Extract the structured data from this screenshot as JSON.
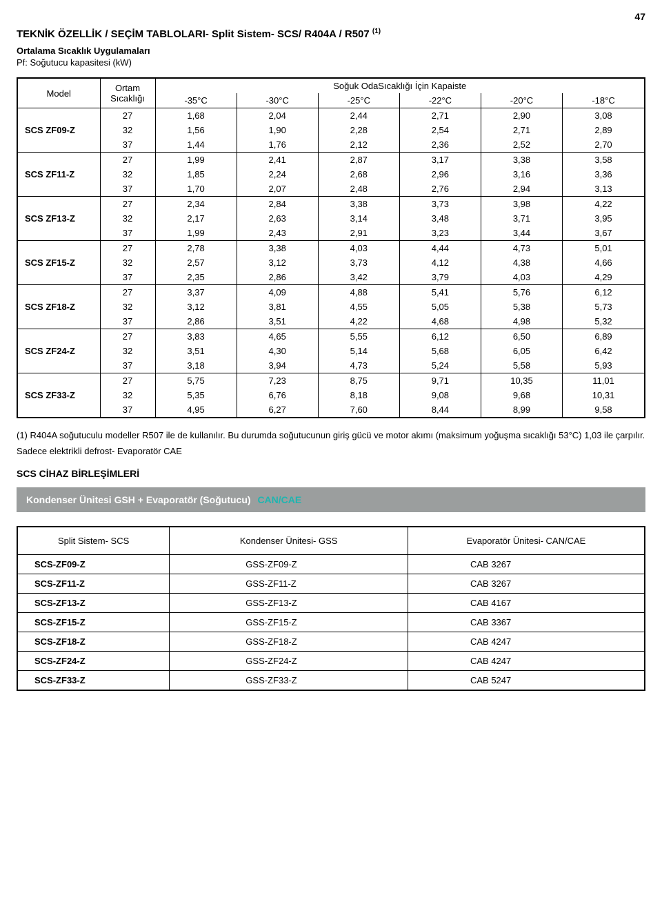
{
  "page_number": "47",
  "title": "TEKNİK ÖZELLİK / SEÇİM TABLOLARI- Split Sistem- SCS/ R404A / R507",
  "title_sup": "(1)",
  "subtitle": "Ortalama Sıcaklık Uygulamaları",
  "pf_line": "Pf: Soğutucu kapasitesi (kW)",
  "spec_table": {
    "hdr_model": "Model",
    "hdr_ortam": "Ortam Sıcaklığı",
    "hdr_kapaiste": "Soğuk OdaSıcaklığı İçin Kapaiste",
    "temp_cols": [
      "-35°C",
      "-30°C",
      "-25°C",
      "-22°C",
      "-20°C",
      "-18°C"
    ],
    "groups": [
      {
        "model": "SCS ZF09-Z",
        "rows": [
          {
            "amb": "27",
            "v": [
              "1,68",
              "2,04",
              "2,44",
              "2,71",
              "2,90",
              "3,08"
            ]
          },
          {
            "amb": "32",
            "v": [
              "1,56",
              "1,90",
              "2,28",
              "2,54",
              "2,71",
              "2,89"
            ]
          },
          {
            "amb": "37",
            "v": [
              "1,44",
              "1,76",
              "2,12",
              "2,36",
              "2,52",
              "2,70"
            ]
          }
        ]
      },
      {
        "model": "SCS ZF11-Z",
        "rows": [
          {
            "amb": "27",
            "v": [
              "1,99",
              "2,41",
              "2,87",
              "3,17",
              "3,38",
              "3,58"
            ]
          },
          {
            "amb": "32",
            "v": [
              "1,85",
              "2,24",
              "2,68",
              "2,96",
              "3,16",
              "3,36"
            ]
          },
          {
            "amb": "37",
            "v": [
              "1,70",
              "2,07",
              "2,48",
              "2,76",
              "2,94",
              "3,13"
            ]
          }
        ]
      },
      {
        "model": "SCS ZF13-Z",
        "rows": [
          {
            "amb": "27",
            "v": [
              "2,34",
              "2,84",
              "3,38",
              "3,73",
              "3,98",
              "4,22"
            ]
          },
          {
            "amb": "32",
            "v": [
              "2,17",
              "2,63",
              "3,14",
              "3,48",
              "3,71",
              "3,95"
            ]
          },
          {
            "amb": "37",
            "v": [
              "1,99",
              "2,43",
              "2,91",
              "3,23",
              "3,44",
              "3,67"
            ]
          }
        ]
      },
      {
        "model": "SCS ZF15-Z",
        "rows": [
          {
            "amb": "27",
            "v": [
              "2,78",
              "3,38",
              "4,03",
              "4,44",
              "4,73",
              "5,01"
            ]
          },
          {
            "amb": "32",
            "v": [
              "2,57",
              "3,12",
              "3,73",
              "4,12",
              "4,38",
              "4,66"
            ]
          },
          {
            "amb": "37",
            "v": [
              "2,35",
              "2,86",
              "3,42",
              "3,79",
              "4,03",
              "4,29"
            ]
          }
        ]
      },
      {
        "model": "SCS ZF18-Z",
        "rows": [
          {
            "amb": "27",
            "v": [
              "3,37",
              "4,09",
              "4,88",
              "5,41",
              "5,76",
              "6,12"
            ]
          },
          {
            "amb": "32",
            "v": [
              "3,12",
              "3,81",
              "4,55",
              "5,05",
              "5,38",
              "5,73"
            ]
          },
          {
            "amb": "37",
            "v": [
              "2,86",
              "3,51",
              "4,22",
              "4,68",
              "4,98",
              "5,32"
            ]
          }
        ]
      },
      {
        "model": "SCS ZF24-Z",
        "rows": [
          {
            "amb": "27",
            "v": [
              "3,83",
              "4,65",
              "5,55",
              "6,12",
              "6,50",
              "6,89"
            ]
          },
          {
            "amb": "32",
            "v": [
              "3,51",
              "4,30",
              "5,14",
              "5,68",
              "6,05",
              "6,42"
            ]
          },
          {
            "amb": "37",
            "v": [
              "3,18",
              "3,94",
              "4,73",
              "5,24",
              "5,58",
              "5,93"
            ]
          }
        ]
      },
      {
        "model": "SCS ZF33-Z",
        "rows": [
          {
            "amb": "27",
            "v": [
              "5,75",
              "7,23",
              "8,75",
              "9,71",
              "10,35",
              "11,01"
            ]
          },
          {
            "amb": "32",
            "v": [
              "5,35",
              "6,76",
              "8,18",
              "9,08",
              "9,68",
              "10,31"
            ]
          },
          {
            "amb": "37",
            "v": [
              "4,95",
              "6,27",
              "7,60",
              "8,44",
              "8,99",
              "9,58"
            ]
          }
        ]
      }
    ]
  },
  "note1": "(1) R404A soğutuculu modeller R507 ile de kullanılır. Bu durumda soğutucunun giriş gücü ve motor akımı (maksimum yoğuşma sıcaklığı 53°C) 1,03 ile çarpılır.",
  "note2": "Sadece elektrikli defrost- Evaporatör CAE",
  "section_head": "SCS CİHAZ BİRLEŞİMLERİ",
  "grey_bar_main": "Kondenser Ünitesi GSH + Evaporatör (Soğutucu)",
  "grey_bar_teal": "CAN/CAE",
  "pair_table": {
    "headers": [
      "Split Sistem- SCS",
      "Kondenser Ünitesi- GSS",
      "Evaporatör Ünitesi- CAN/CAE"
    ],
    "rows": [
      [
        "SCS-ZF09-Z",
        "GSS-ZF09-Z",
        "CAB 3267"
      ],
      [
        "SCS-ZF11-Z",
        "GSS-ZF11-Z",
        "CAB 3267"
      ],
      [
        "SCS-ZF13-Z",
        "GSS-ZF13-Z",
        "CAB 4167"
      ],
      [
        "SCS-ZF15-Z",
        "GSS-ZF15-Z",
        "CAB 3367"
      ],
      [
        "SCS-ZF18-Z",
        "GSS-ZF18-Z",
        "CAB 4247"
      ],
      [
        "SCS-ZF24-Z",
        "GSS-ZF24-Z",
        "CAB 4247"
      ],
      [
        "SCS-ZF33-Z",
        "GSS-ZF33-Z",
        "CAB 5247"
      ]
    ]
  }
}
